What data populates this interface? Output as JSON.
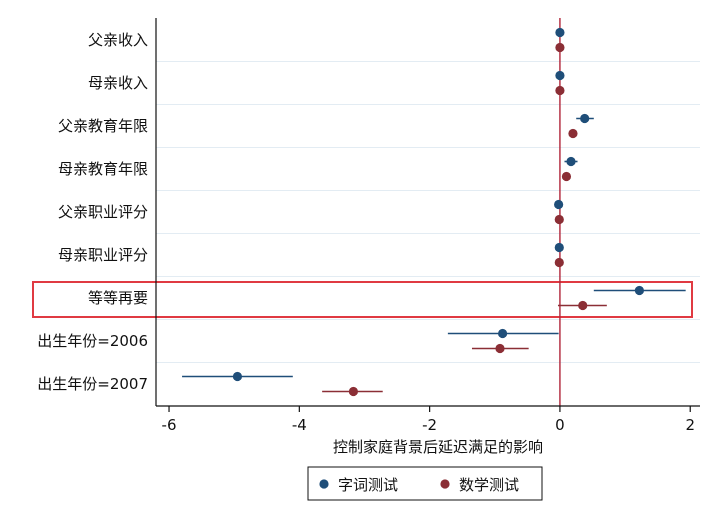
{
  "chart_data": {
    "type": "scatter",
    "subtype": "coefficient-plot",
    "xlabel": "控制家庭背景后延迟满足的影响",
    "xlim": [
      -6.2,
      2.15
    ],
    "xticks": [
      "-6",
      "-4",
      "-2",
      "0",
      "2"
    ],
    "reference_line_x": 0,
    "categories": [
      "父亲收入",
      "母亲收入",
      "父亲教育年限",
      "母亲教育年限",
      "父亲职业评分",
      "母亲职业评分",
      "等等再要",
      "出生年份=2006",
      "出生年份=2007"
    ],
    "highlighted_category": "等等再要",
    "series": [
      {
        "name": "字词测试",
        "color": "#1f4e79",
        "estimate": [
          0.0,
          0.0,
          0.38,
          0.17,
          -0.02,
          -0.01,
          1.22,
          -0.88,
          -4.95
        ],
        "ci_low": [
          0.0,
          0.0,
          0.25,
          0.07,
          -0.02,
          -0.01,
          0.52,
          -1.72,
          -5.8
        ],
        "ci_high": [
          0.0,
          0.0,
          0.52,
          0.27,
          -0.02,
          -0.01,
          1.93,
          -0.02,
          -4.1
        ]
      },
      {
        "name": "数学测试",
        "color": "#8b2e35",
        "estimate": [
          0.0,
          0.0,
          0.2,
          0.1,
          -0.01,
          -0.01,
          0.35,
          -0.92,
          -3.17
        ],
        "ci_low": [
          0.0,
          0.0,
          0.2,
          0.1,
          -0.01,
          -0.01,
          -0.03,
          -1.35,
          -3.65
        ],
        "ci_high": [
          0.0,
          0.0,
          0.2,
          0.1,
          -0.01,
          -0.01,
          0.72,
          -0.48,
          -2.72
        ]
      }
    ],
    "legend_position": "bottom",
    "grid": "horizontal"
  },
  "colors": {
    "axis": "#111111",
    "gridline": "#e3ecf3",
    "reference_line": "#b0253a",
    "highlight_box": "#e03a42"
  }
}
